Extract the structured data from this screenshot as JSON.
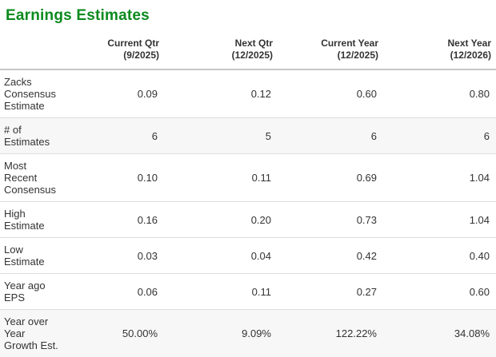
{
  "chart_data": {
    "type": "table",
    "title": "Earnings Estimates",
    "columns": [
      {
        "label": "Current Qtr",
        "period": "(9/2025)"
      },
      {
        "label": "Next Qtr",
        "period": "(12/2025)"
      },
      {
        "label": "Current Year",
        "period": "(12/2025)"
      },
      {
        "label": "Next Year",
        "period": "(12/2026)"
      }
    ],
    "rows": [
      {
        "label": "Zacks Consensus Estimate",
        "values": [
          "0.09",
          "0.12",
          "0.60",
          "0.80"
        ],
        "shaded": false
      },
      {
        "label": "# of Estimates",
        "values": [
          "6",
          "5",
          "6",
          "6"
        ],
        "shaded": true
      },
      {
        "label": "Most Recent Consensus",
        "values": [
          "0.10",
          "0.11",
          "0.69",
          "1.04"
        ],
        "shaded": false
      },
      {
        "label": "High Estimate",
        "values": [
          "0.16",
          "0.20",
          "0.73",
          "1.04"
        ],
        "shaded": false
      },
      {
        "label": "Low Estimate",
        "values": [
          "0.03",
          "0.04",
          "0.42",
          "0.40"
        ],
        "shaded": false
      },
      {
        "label": "Year ago EPS",
        "values": [
          "0.06",
          "0.11",
          "0.27",
          "0.60"
        ],
        "shaded": false
      },
      {
        "label": "Year over Year Growth Est.",
        "values": [
          "50.00%",
          "9.09%",
          "122.22%",
          "34.08%"
        ],
        "shaded": true
      }
    ],
    "colors": {
      "title": "#0b8a1e",
      "text": "#333333",
      "row_border": "#dddddd",
      "header_border": "#c6c6c6",
      "shaded_row_bg": "#f7f7f7"
    },
    "layout_hints": {
      "value_alignment": "right",
      "header_alignment": "right",
      "grid": "horizontal-rules-only"
    }
  }
}
